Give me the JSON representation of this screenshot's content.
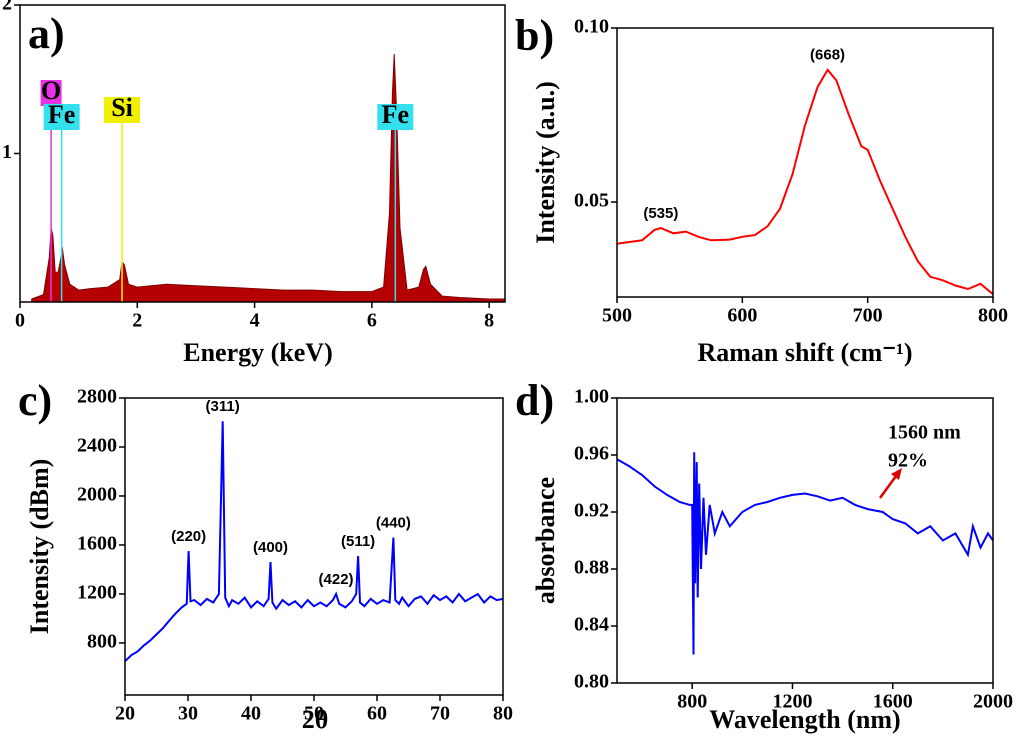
{
  "chart_data": [
    {
      "type": "area",
      "label": "a)",
      "xlabel": "Energy (keV)",
      "color": "#b40000",
      "xlim": [
        0,
        8.27
      ],
      "ylim": [
        0,
        2
      ],
      "xticks": [
        0,
        2,
        4,
        6,
        8
      ],
      "yticks": [
        1,
        2
      ],
      "x": [
        0.2,
        0.4,
        0.5,
        0.53,
        0.56,
        0.6,
        0.65,
        0.7,
        0.72,
        0.76,
        0.85,
        1.0,
        1.2,
        1.5,
        1.7,
        1.74,
        1.78,
        1.85,
        2.0,
        2.5,
        3.0,
        3.5,
        4.0,
        4.5,
        5.0,
        5.5,
        6.0,
        6.2,
        6.3,
        6.35,
        6.38,
        6.42,
        6.48,
        6.6,
        6.8,
        6.88,
        6.92,
        7.0,
        7.2,
        7.5,
        8.0,
        8.27
      ],
      "values": [
        0.02,
        0.05,
        0.3,
        0.5,
        0.45,
        0.2,
        0.2,
        0.3,
        0.37,
        0.25,
        0.12,
        0.08,
        0.09,
        0.1,
        0.15,
        0.27,
        0.25,
        0.12,
        0.1,
        0.12,
        0.11,
        0.1,
        0.09,
        0.08,
        0.08,
        0.07,
        0.07,
        0.1,
        0.6,
        1.4,
        1.67,
        1.3,
        0.5,
        0.08,
        0.1,
        0.22,
        0.24,
        0.12,
        0.04,
        0.03,
        0.02,
        0.02
      ],
      "annotations": [
        {
          "text": "O",
          "x": 0.53,
          "color": "#e633e6"
        },
        {
          "text": "Fe",
          "x": 0.71,
          "color": "#33e0ee"
        },
        {
          "text": "Si",
          "x": 1.74,
          "color": "#f0f000"
        },
        {
          "text": "Fe",
          "x": 6.4,
          "color": "#33e0ee"
        }
      ]
    },
    {
      "type": "line",
      "label": "b)",
      "xlabel": "Raman shift (cm⁻¹)",
      "ylabel": "Intensity (a.u.)",
      "color": "#ff0000",
      "xlim": [
        500,
        800
      ],
      "ylim": [
        0.0227,
        0.1
      ],
      "xticks": [
        500,
        600,
        700,
        800
      ],
      "yticks": [
        0.05,
        {
          "value": 0.1,
          "label": "0.10"
        }
      ],
      "x": [
        500,
        510,
        520,
        530,
        535,
        545,
        555,
        565,
        575,
        590,
        600,
        610,
        620,
        630,
        640,
        650,
        660,
        668,
        675,
        685,
        695,
        700,
        710,
        720,
        730,
        740,
        750,
        760,
        770,
        780,
        790,
        800
      ],
      "values": [
        0.038,
        0.0385,
        0.039,
        0.042,
        0.0425,
        0.041,
        0.0415,
        0.04,
        0.039,
        0.0392,
        0.04,
        0.0405,
        0.043,
        0.048,
        0.058,
        0.072,
        0.083,
        0.088,
        0.085,
        0.075,
        0.066,
        0.065,
        0.056,
        0.048,
        0.04,
        0.033,
        0.0285,
        0.0275,
        0.026,
        0.025,
        0.0265,
        0.0235
      ],
      "annotations": [
        {
          "text": "(535)",
          "x": 535
        },
        {
          "text": "(668)",
          "x": 668
        }
      ]
    },
    {
      "type": "line",
      "label": "c)",
      "xlabel": "2θ",
      "ylabel": "Intensity (dBm)",
      "color": "#0000ff",
      "xlim": [
        20,
        80
      ],
      "ylim": [
        375,
        2800
      ],
      "xticks": [
        20,
        30,
        40,
        50,
        60,
        70,
        80
      ],
      "yticks": [
        800,
        1200,
        1600,
        2000,
        2400,
        2800
      ],
      "x": [
        20,
        21,
        22,
        23,
        24,
        25,
        26,
        27,
        28,
        29,
        29.8,
        30.1,
        30.4,
        31,
        32,
        33,
        34,
        34.9,
        35.5,
        35.9,
        36.5,
        37,
        38,
        39,
        40,
        41,
        42,
        42.8,
        43.1,
        43.4,
        44,
        45,
        46,
        47,
        48,
        49,
        50,
        51,
        52,
        53,
        53.5,
        54,
        55,
        56,
        56.7,
        57,
        57.3,
        58,
        59,
        60,
        61,
        62,
        62.6,
        62.9,
        63.5,
        64,
        65,
        66,
        67,
        68,
        69,
        70,
        71,
        72,
        73,
        74,
        75,
        76,
        77,
        78,
        79,
        80
      ],
      "values": [
        650,
        700,
        730,
        780,
        820,
        870,
        920,
        980,
        1040,
        1090,
        1120,
        1550,
        1140,
        1150,
        1110,
        1160,
        1130,
        1200,
        2610,
        1170,
        1100,
        1150,
        1120,
        1170,
        1090,
        1140,
        1100,
        1160,
        1460,
        1130,
        1080,
        1150,
        1110,
        1140,
        1090,
        1150,
        1100,
        1130,
        1100,
        1150,
        1200,
        1120,
        1090,
        1140,
        1200,
        1510,
        1130,
        1100,
        1160,
        1120,
        1150,
        1130,
        1660,
        1150,
        1120,
        1170,
        1100,
        1160,
        1180,
        1120,
        1190,
        1150,
        1180,
        1130,
        1200,
        1140,
        1170,
        1200,
        1130,
        1180,
        1150,
        1160
      ],
      "annotations": [
        {
          "text": "(220)",
          "x": 30.1
        },
        {
          "text": "(311)",
          "x": 35.5
        },
        {
          "text": "(400)",
          "x": 43.1
        },
        {
          "text": "(422)",
          "x": 53.5
        },
        {
          "text": "(511)",
          "x": 57
        },
        {
          "text": "(440)",
          "x": 62.6
        }
      ]
    },
    {
      "type": "line",
      "label": "d)",
      "xlabel": "Wavelength (nm)",
      "ylabel": "absorbance",
      "color": "#0000ff",
      "xlim": [
        500,
        2000
      ],
      "ylim": [
        0.8,
        1.0
      ],
      "xticks": [
        800,
        1200,
        1600,
        2000
      ],
      "yticks": [
        {
          "value": 0.8,
          "label": "0.80"
        },
        0.84,
        0.88,
        0.92,
        0.96,
        {
          "value": 1.0,
          "label": "1.00"
        }
      ],
      "x": [
        500,
        550,
        600,
        650,
        700,
        750,
        790,
        800,
        805,
        808,
        812,
        818,
        822,
        828,
        835,
        845,
        855,
        870,
        890,
        920,
        950,
        1000,
        1050,
        1100,
        1150,
        1200,
        1250,
        1300,
        1350,
        1400,
        1450,
        1500,
        1560,
        1600,
        1650,
        1700,
        1750,
        1800,
        1850,
        1900,
        1920,
        1950,
        1980,
        2000
      ],
      "values": [
        0.957,
        0.952,
        0.946,
        0.938,
        0.932,
        0.927,
        0.925,
        0.925,
        0.82,
        0.962,
        0.87,
        0.955,
        0.86,
        0.94,
        0.88,
        0.93,
        0.89,
        0.925,
        0.905,
        0.92,
        0.91,
        0.92,
        0.925,
        0.927,
        0.93,
        0.932,
        0.933,
        0.931,
        0.928,
        0.93,
        0.925,
        0.922,
        0.92,
        0.915,
        0.912,
        0.905,
        0.91,
        0.9,
        0.905,
        0.89,
        0.91,
        0.895,
        0.905,
        0.9
      ],
      "note": [
        "1560 nm",
        "92%"
      ]
    }
  ]
}
